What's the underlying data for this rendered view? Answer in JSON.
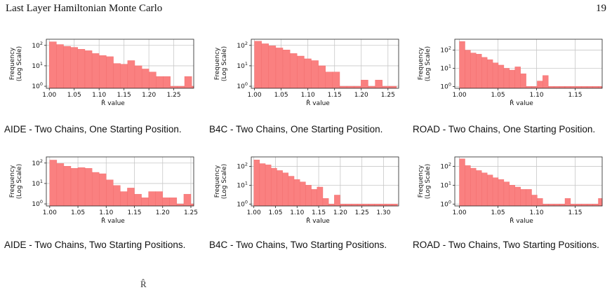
{
  "running_head": "Last Layer Hamiltonian Monte Carlo",
  "page_number": "19",
  "footer_fragment": "R̂",
  "ylabel_line1": "Frequency",
  "ylabel_line2": "(Log Scale)",
  "xlabel": "R̂ value",
  "colors": {
    "bar_fill": "#fa8080",
    "bar_edge": "#f06a6a",
    "grid": "#c8c8c8",
    "axis": "#222222"
  },
  "chart_data": [
    {
      "type": "bar",
      "caption": "AIDE - Two Chains, One Starting Position.",
      "scale_y": "log",
      "xlim": [
        0.994,
        1.29
      ],
      "ylim_exp": [
        -0.1,
        2.3
      ],
      "xticks": [
        1.0,
        1.05,
        1.1,
        1.15,
        1.2,
        1.25
      ],
      "xtick_labels": [
        "1.00",
        "1.05",
        "1.10",
        "1.15",
        "1.20",
        "1.25"
      ],
      "bin_start": 1.0,
      "bin_width": 0.0143,
      "values": [
        150,
        110,
        90,
        80,
        65,
        55,
        40,
        32,
        28,
        13,
        12,
        18,
        10,
        7,
        5,
        3,
        3,
        1,
        1,
        3,
        1,
        1,
        1,
        1,
        1,
        1
      ]
    },
    {
      "type": "bar",
      "caption": "B4C - Two Chains, One Starting Position.",
      "scale_y": "log",
      "xlim": [
        0.994,
        1.27
      ],
      "ylim_exp": [
        -0.1,
        2.3
      ],
      "xticks": [
        1.0,
        1.05,
        1.1,
        1.15,
        1.2,
        1.25
      ],
      "xtick_labels": [
        "1.00",
        "1.05",
        "1.10",
        "1.15",
        "1.20",
        "1.25"
      ],
      "bin_start": 1.0,
      "bin_width": 0.0133,
      "values": [
        160,
        120,
        95,
        75,
        60,
        40,
        30,
        22,
        18,
        10,
        5,
        5,
        1,
        1,
        1,
        2,
        1,
        2,
        1,
        1
      ]
    },
    {
      "type": "bar",
      "caption": "ROAD - Two Chains, One Starting Position.",
      "scale_y": "log",
      "xlim": [
        0.994,
        1.185
      ],
      "ylim_exp": [
        -0.1,
        2.6
      ],
      "xticks": [
        1.0,
        1.05,
        1.1,
        1.15
      ],
      "xtick_labels": [
        "1.00",
        "1.05",
        "1.10",
        "1.15"
      ],
      "bin_start": 1.0,
      "bin_width": 0.0072,
      "values": [
        300,
        100,
        70,
        60,
        40,
        30,
        20,
        15,
        10,
        8,
        12,
        5,
        1,
        1,
        2,
        4,
        1,
        1,
        1,
        1,
        1,
        1,
        1,
        1,
        1,
        1
      ]
    },
    {
      "type": "bar",
      "caption": "AIDE - Two Chains, Two Starting Positions.",
      "scale_y": "log",
      "xlim": [
        0.994,
        1.255
      ],
      "ylim_exp": [
        -0.1,
        2.3
      ],
      "xticks": [
        1.0,
        1.05,
        1.1,
        1.15,
        1.2,
        1.25
      ],
      "xtick_labels": [
        "1.00",
        "1.05",
        "1.10",
        "1.15",
        "1.20",
        "1.25"
      ],
      "bin_start": 1.0,
      "bin_width": 0.0125,
      "values": [
        140,
        95,
        70,
        55,
        60,
        55,
        35,
        30,
        15,
        8,
        4,
        6,
        3,
        2,
        4,
        4,
        2,
        2,
        1,
        3,
        1,
        1,
        1,
        1,
        1
      ]
    },
    {
      "type": "bar",
      "caption": "B4C - Two Chains, Two Starting Positions.",
      "scale_y": "log",
      "xlim": [
        0.994,
        1.335
      ],
      "ylim_exp": [
        -0.1,
        2.5
      ],
      "xticks": [
        1.0,
        1.05,
        1.1,
        1.15,
        1.2,
        1.25,
        1.3
      ],
      "xtick_labels": [
        "1.00",
        "1.05",
        "1.10",
        "1.15",
        "1.20",
        "1.25",
        "1.30"
      ],
      "bin_start": 1.0,
      "bin_width": 0.0133,
      "values": [
        220,
        140,
        120,
        80,
        60,
        45,
        30,
        20,
        15,
        10,
        6,
        8,
        2,
        1,
        3,
        1,
        1,
        1,
        1,
        1,
        1,
        1,
        1,
        1,
        1
      ]
    },
    {
      "type": "bar",
      "caption": "ROAD - Two Chains, Two Starting Positions.",
      "scale_y": "log",
      "xlim": [
        0.994,
        1.185
      ],
      "ylim_exp": [
        -0.1,
        2.5
      ],
      "xticks": [
        1.0,
        1.05,
        1.1,
        1.15
      ],
      "xtick_labels": [
        "1.00",
        "1.05",
        "1.10",
        "1.15"
      ],
      "bin_start": 1.0,
      "bin_width": 0.0072,
      "values": [
        250,
        110,
        80,
        60,
        45,
        35,
        25,
        20,
        15,
        10,
        8,
        6,
        6,
        3,
        2,
        1,
        1,
        1,
        1,
        2,
        1,
        1,
        1,
        1,
        1,
        2
      ]
    }
  ]
}
